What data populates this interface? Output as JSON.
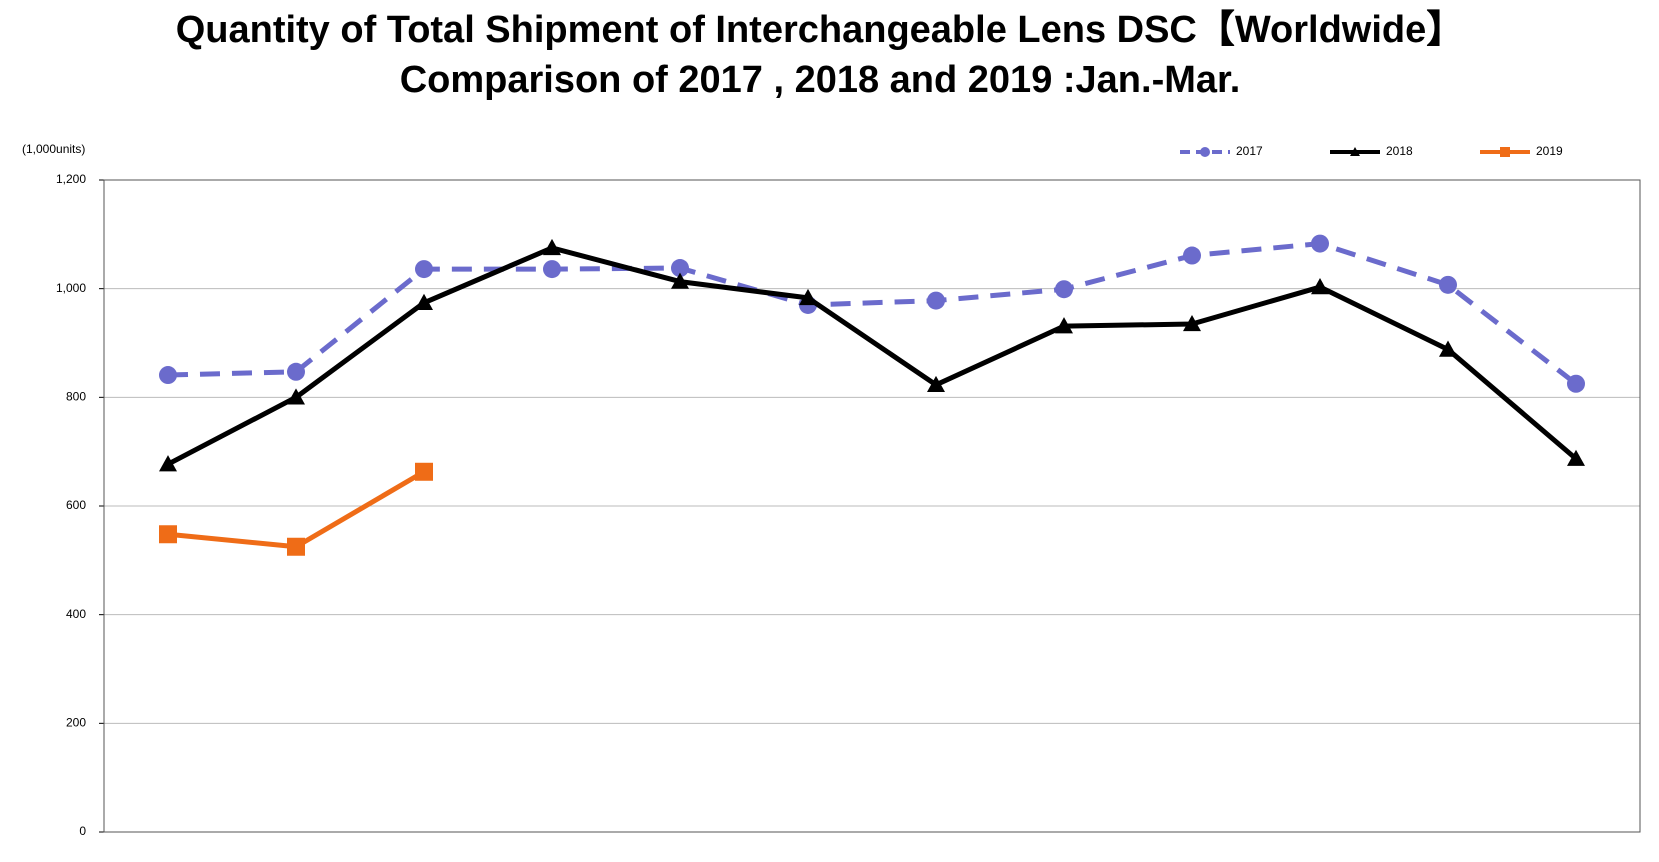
{
  "chart_data": {
    "type": "line",
    "title": "Quantity of Total Shipment of Interchangeable Lens DSC【Worldwide】",
    "subtitle": "Comparison of 2017 , 2018 and 2019 :Jan.-Mar.",
    "y_label": "(1,000units)",
    "categories": [
      null,
      null,
      null,
      null,
      null,
      null,
      null,
      null,
      null,
      null,
      null,
      null
    ],
    "series": [
      {
        "name": "2017",
        "color": "#6b6bcc",
        "line_style": "dashed",
        "marker": "circle",
        "values": [
          841,
          847,
          1036,
          1036,
          1038,
          970,
          978,
          999,
          1061,
          1083,
          1007,
          825
        ]
      },
      {
        "name": "2018",
        "color": "#000000",
        "line_style": "solid",
        "marker": "triangle",
        "values": [
          677,
          800,
          974,
          1075,
          1013,
          983,
          823,
          931,
          935,
          1003,
          888,
          687
        ]
      },
      {
        "name": "2019",
        "color": "#ef6c17",
        "line_style": "solid",
        "marker": "square",
        "values": [
          548,
          525,
          663,
          null,
          null,
          null,
          null,
          null,
          null,
          null,
          null,
          null
        ]
      }
    ],
    "ylim": [
      0,
      1200
    ],
    "yticks": [
      0,
      200,
      400,
      600,
      800,
      {
        "value": 1000,
        "label": "1,000"
      },
      {
        "value": 1200,
        "label": "1,200"
      }
    ],
    "grid": true,
    "legend": "top-right"
  }
}
